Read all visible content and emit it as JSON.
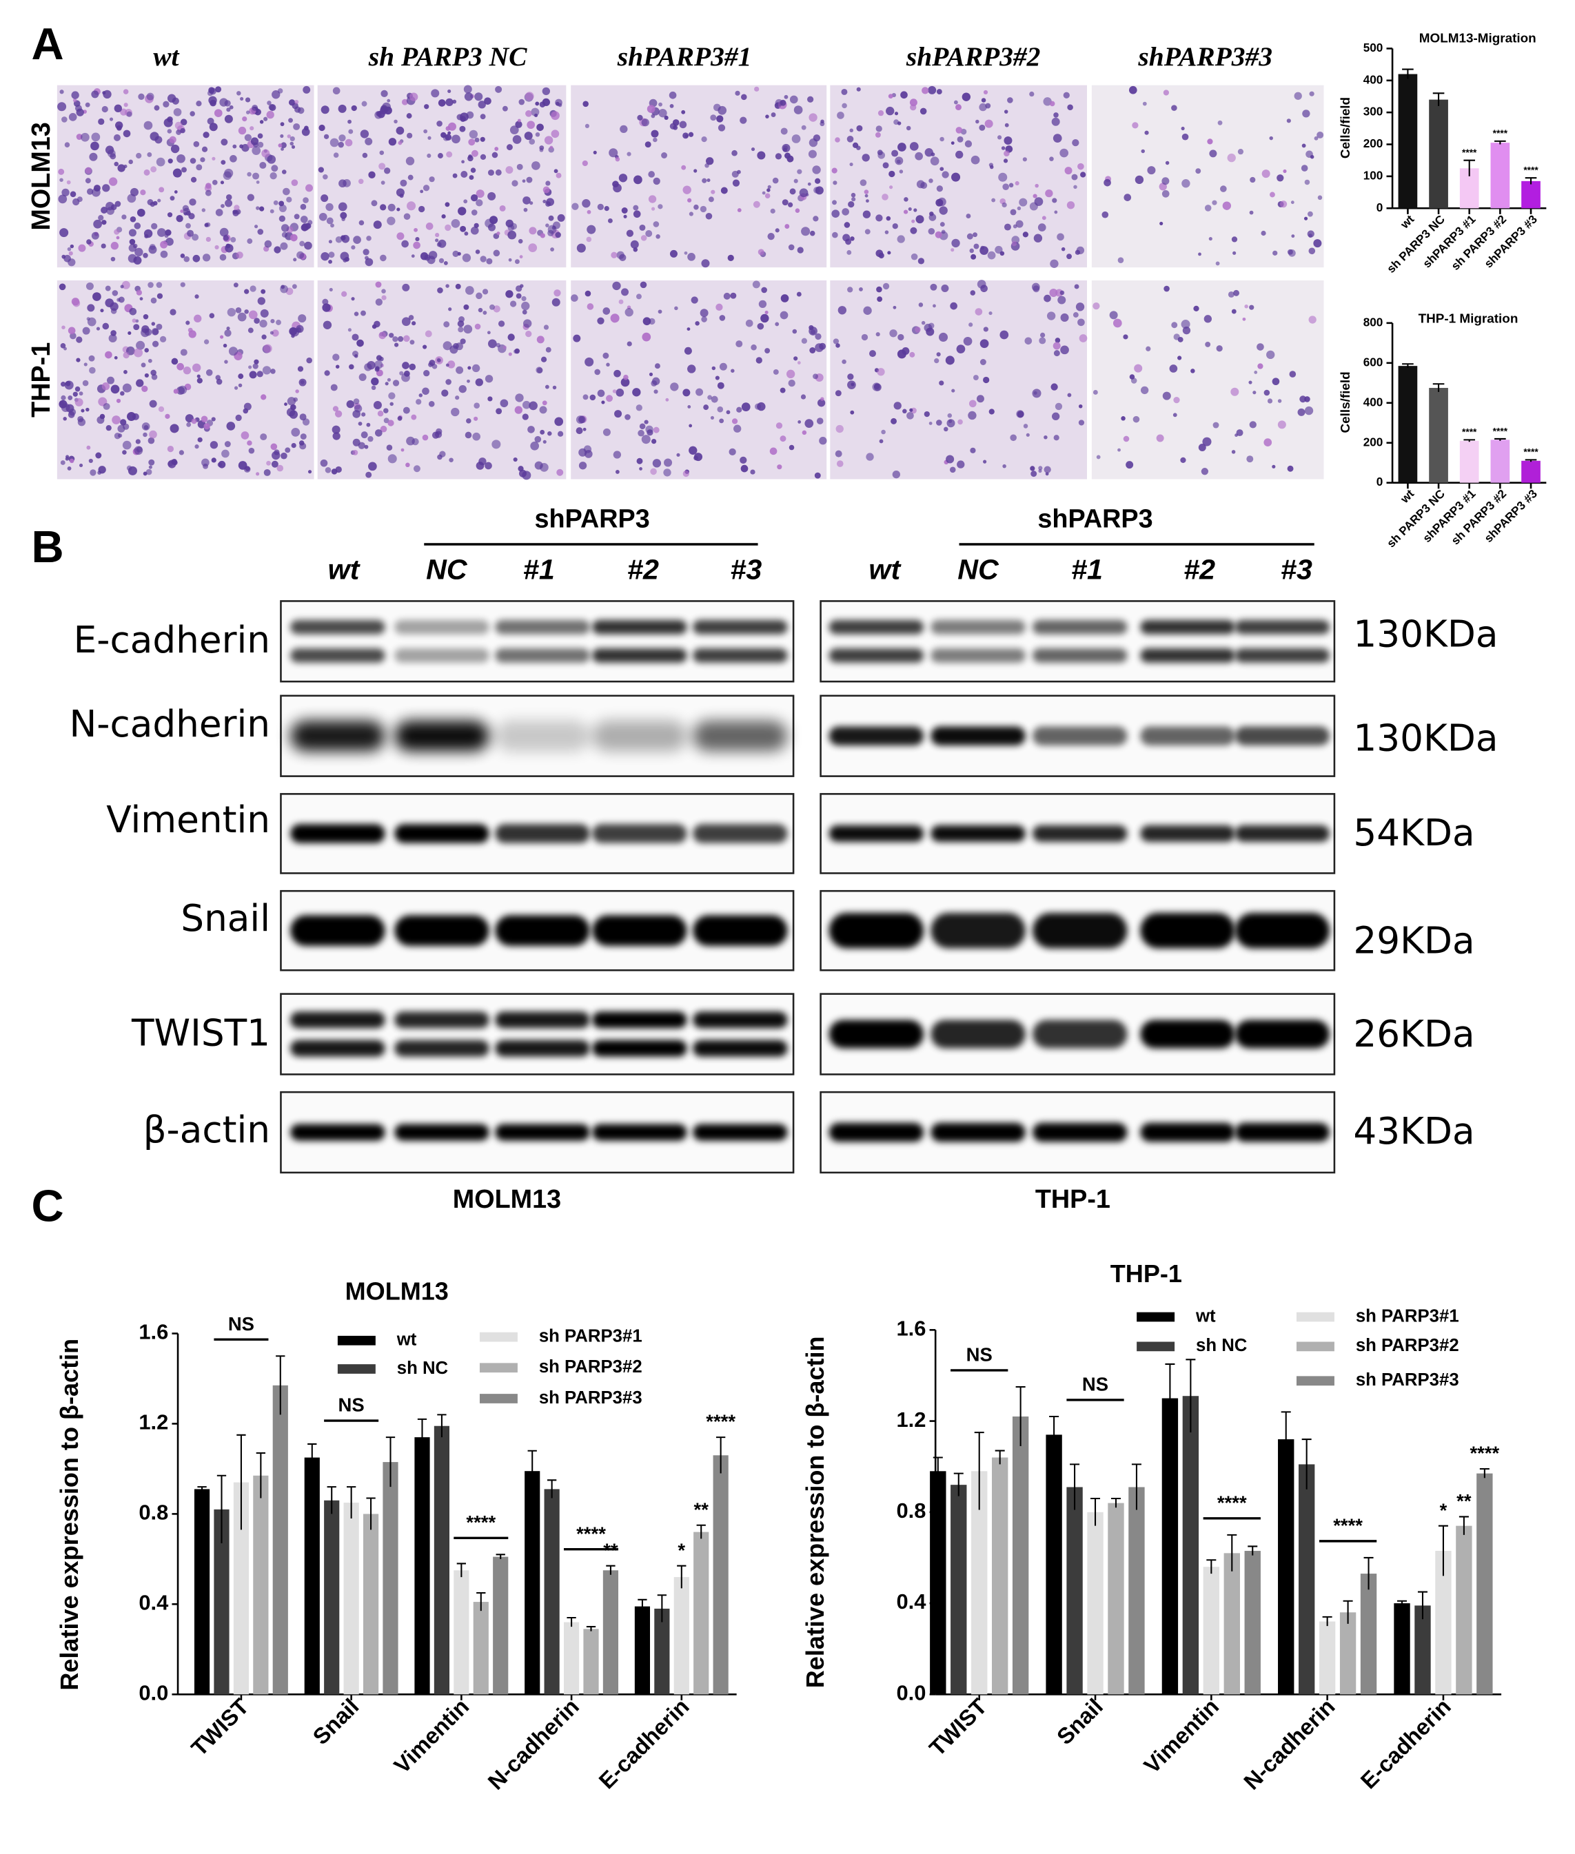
{
  "panel_labels": [
    "A",
    "B",
    "C"
  ],
  "panel_a": {
    "columns": [
      "wt",
      "sh PARP3 NC",
      "shPARP3#1",
      "shPARP3#2",
      "shPARP3#3"
    ],
    "rows": [
      "MOLM13",
      "THP-1"
    ]
  },
  "panel_b": {
    "group_label": "shPARP3",
    "lanes": [
      "wt",
      "NC",
      "#1",
      "#2",
      "#3"
    ],
    "proteins": [
      "E-cadherin",
      "N-cadherin",
      "Vimentin",
      "Snail",
      "TWIST1",
      "β-actin"
    ],
    "sizes": [
      "130KDa",
      "130KDa",
      "54KDa",
      "29KDa",
      "26KDa",
      "43KDa"
    ],
    "cell_lines": [
      "MOLM13",
      "THP-1"
    ]
  },
  "chart_data": [
    {
      "type": "bar",
      "title": "MOLM13-Migration",
      "ylabel": "Cells/field",
      "categories": [
        "wt",
        "sh PARP3 NC",
        "shPARP3 #1",
        "sh PARP3 #2",
        "shPARP3 #3"
      ],
      "values": [
        420,
        340,
        125,
        205,
        85
      ],
      "errors": [
        15,
        20,
        25,
        5,
        10
      ],
      "colors": [
        "#111111",
        "#3a3a3a",
        "#f4c8f4",
        "#e08ef0",
        "#b21ee0"
      ],
      "significance": [
        null,
        null,
        "****",
        "****",
        "****"
      ],
      "ylim": [
        0,
        500
      ],
      "yticks": [
        0,
        100,
        200,
        300,
        400,
        500
      ]
    },
    {
      "type": "bar",
      "title": "THP-1 Migration",
      "ylabel": "Cells/field",
      "categories": [
        "wt",
        "sh PARP3 NC",
        "shPARP3 #1",
        "sh PARP3 #2",
        "shPARP3 #3"
      ],
      "values": [
        585,
        475,
        210,
        215,
        110
      ],
      "errors": [
        10,
        20,
        5,
        5,
        5
      ],
      "colors": [
        "#111111",
        "#555555",
        "#f4d0f4",
        "#e0a0f0",
        "#b020d8"
      ],
      "significance": [
        null,
        null,
        "****",
        "****",
        "****"
      ],
      "ylim": [
        0,
        800
      ],
      "yticks": [
        0,
        200,
        400,
        600,
        800
      ]
    },
    {
      "type": "grouped-bar",
      "title": "MOLM13",
      "ylabel": "Relative expression to β-actin",
      "categories": [
        "TWIST",
        "Snail",
        "Vimentin",
        "N-cadherin",
        "E-cadherin"
      ],
      "group_annotations": [
        "NS",
        "NS",
        "****",
        "****",
        null
      ],
      "series": [
        {
          "name": "wt",
          "color": "#000000",
          "values": [
            0.91,
            1.05,
            1.14,
            0.99,
            0.39
          ],
          "errors": [
            0.01,
            0.06,
            0.08,
            0.09,
            0.03
          ],
          "significance": [
            null,
            null,
            null,
            null,
            null
          ]
        },
        {
          "name": "sh NC",
          "color": "#3c3c3c",
          "values": [
            0.82,
            0.86,
            1.19,
            0.91,
            0.38
          ],
          "errors": [
            0.15,
            0.06,
            0.05,
            0.04,
            0.06
          ],
          "significance": [
            null,
            null,
            null,
            null,
            null
          ]
        },
        {
          "name": "sh PARP3#1",
          "color": "#e0e0e0",
          "values": [
            0.94,
            0.85,
            0.55,
            0.32,
            0.52
          ],
          "errors": [
            0.21,
            0.07,
            0.03,
            0.02,
            0.05
          ],
          "significance": [
            null,
            null,
            null,
            null,
            "*"
          ]
        },
        {
          "name": "sh PARP3#2",
          "color": "#b0b0b0",
          "values": [
            0.97,
            0.8,
            0.41,
            0.29,
            0.72
          ],
          "errors": [
            0.1,
            0.07,
            0.04,
            0.01,
            0.03
          ],
          "significance": [
            null,
            null,
            null,
            null,
            "**"
          ]
        },
        {
          "name": "sh PARP3#3",
          "color": "#888888",
          "values": [
            1.37,
            1.03,
            0.61,
            0.55,
            1.06
          ],
          "errors": [
            0.13,
            0.11,
            0.01,
            0.02,
            0.08
          ],
          "significance": [
            null,
            null,
            null,
            "**",
            "****"
          ]
        }
      ],
      "ylim": [
        0,
        1.6
      ],
      "yticks": [
        {
          "value": 0,
          "label": "0.0"
        },
        0.4,
        0.8,
        1.2,
        1.6
      ]
    },
    {
      "type": "grouped-bar",
      "title": "THP-1",
      "ylabel": "Relative expression to β-actin",
      "categories": [
        "TWIST",
        "Snail",
        "Vimentin",
        "N-cadherin",
        "E-cadherin"
      ],
      "group_annotations": [
        "NS",
        "NS",
        "****",
        "****",
        null
      ],
      "series": [
        {
          "name": "wt",
          "color": "#000000",
          "values": [
            0.98,
            1.14,
            1.3,
            1.12,
            0.4
          ],
          "errors": [
            0.06,
            0.08,
            0.15,
            0.12,
            0.01
          ],
          "significance": [
            null,
            null,
            null,
            null,
            null
          ]
        },
        {
          "name": "sh NC",
          "color": "#3c3c3c",
          "values": [
            0.92,
            0.91,
            1.31,
            1.01,
            0.39
          ],
          "errors": [
            0.05,
            0.1,
            0.16,
            0.11,
            0.06
          ],
          "significance": [
            null,
            null,
            null,
            null,
            null
          ]
        },
        {
          "name": "sh PARP3#1",
          "color": "#e0e0e0",
          "values": [
            0.98,
            0.8,
            0.56,
            0.32,
            0.63
          ],
          "errors": [
            0.17,
            0.06,
            0.03,
            0.02,
            0.11
          ],
          "significance": [
            null,
            null,
            null,
            null,
            "*"
          ]
        },
        {
          "name": "sh PARP3#2",
          "color": "#b0b0b0",
          "values": [
            1.04,
            0.84,
            0.62,
            0.36,
            0.74
          ],
          "errors": [
            0.03,
            0.02,
            0.08,
            0.05,
            0.04
          ],
          "significance": [
            null,
            null,
            null,
            null,
            "**"
          ]
        },
        {
          "name": "sh PARP3#3",
          "color": "#888888",
          "values": [
            1.22,
            0.91,
            0.63,
            0.53,
            0.97
          ],
          "errors": [
            0.13,
            0.1,
            0.02,
            0.07,
            0.02
          ],
          "significance": [
            null,
            null,
            null,
            null,
            "****"
          ]
        }
      ],
      "ylim": [
        0,
        1.6
      ],
      "yticks": [
        {
          "value": 0,
          "label": "0.0"
        },
        0.4,
        0.8,
        1.2,
        1.6
      ]
    }
  ]
}
